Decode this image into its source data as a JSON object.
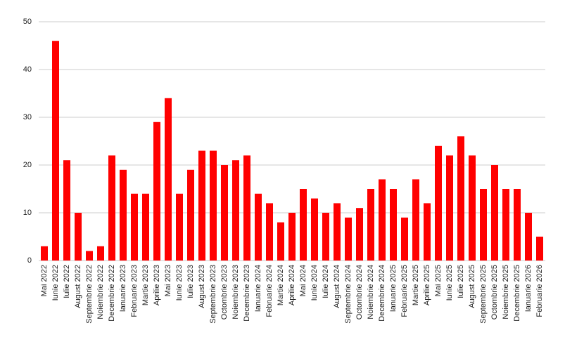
{
  "chart_data": {
    "type": "bar",
    "categories": [
      "Mai 2022",
      "Iunie 2022",
      "Iulie 2022",
      "August 2022",
      "Septembrie 2022",
      "Noiembrie 2022",
      "Decembrie 2022",
      "Ianuarie 2023",
      "Februarie 2023",
      "Martie 2023",
      "Aprilie 2023",
      "Mai 2023",
      "Iunie 2023",
      "Iulie 2023",
      "August 2023",
      "Septembrie 2023",
      "Octombrie 2023",
      "Noiembrie 2023",
      "Decembrie 2023",
      "Ianuarie 2024",
      "Februarie 2024",
      "Martie 2024",
      "Aprilie 2024",
      "Mai 2024",
      "Iunie 2024",
      "Iulie 2024",
      "August 2024",
      "Septembrie 2024",
      "Octombrie 2024",
      "Noiembrie 2024",
      "Decembrie 2024",
      "Ianuarie 2025",
      "Februarie 2025",
      "Martie 2025",
      "Aprilie 2025",
      "Mai 2025",
      "Iunie 2025",
      "Iulie 2025",
      "August 2025",
      "Septembrie 2025",
      "Octombrie 2025",
      "Noiembrie 2025",
      "Decembrie 2025",
      "Ianuarie 2026",
      "Februarie 2026"
    ],
    "values": [
      3,
      46,
      21,
      10,
      2,
      3,
      22,
      19,
      14,
      14,
      29,
      34,
      14,
      19,
      23,
      23,
      20,
      21,
      22,
      14,
      12,
      8,
      10,
      15,
      13,
      10,
      12,
      9,
      11,
      15,
      17,
      15,
      9,
      17,
      12,
      24,
      22,
      26,
      22,
      15,
      20,
      15,
      15,
      10,
      5
    ],
    "color": "#ff0000",
    "ylim": [
      0,
      50
    ],
    "yticks": [
      0,
      10,
      20,
      30,
      40,
      50
    ],
    "grid": true
  }
}
